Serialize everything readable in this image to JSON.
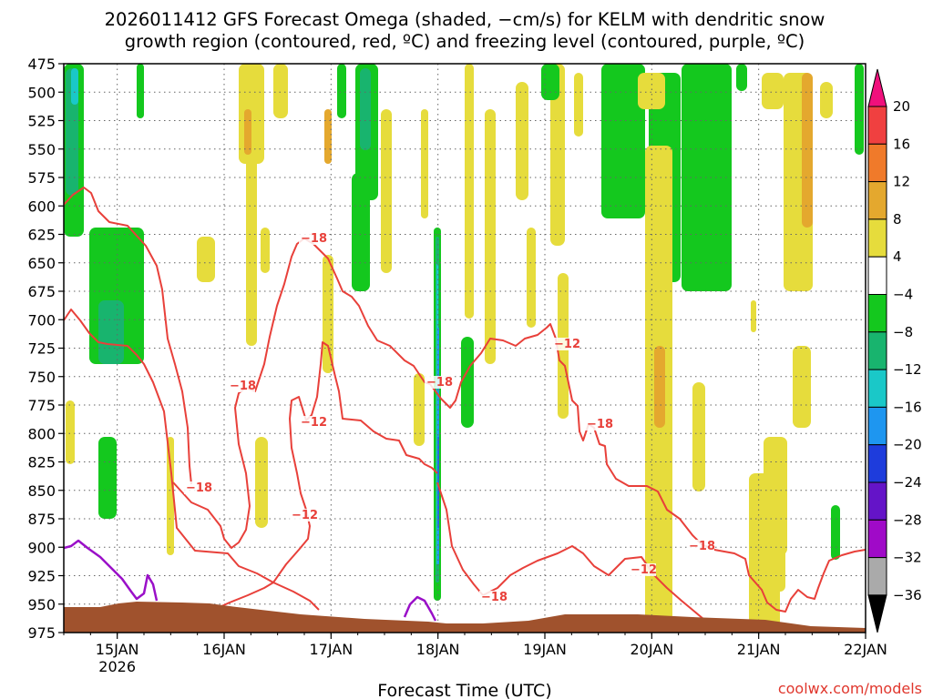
{
  "chart_data": {
    "type": "heatmap",
    "title_lines": [
      "2026011412 GFS Forecast Omega (shaded, −cm/s) for KELM with dendritic snow",
      "growth region (contoured, red, ºC) and freezing level (contoured, purple, ºC)"
    ],
    "xlabel": "Forecast Time (UTC)",
    "credit": "coolwx.com/models",
    "x_range": [
      "2026-01-14T12:00Z",
      "2026-01-22T00:00Z"
    ],
    "x_ticks": [
      "15JAN",
      "16JAN",
      "17JAN",
      "18JAN",
      "19JAN",
      "20JAN",
      "21JAN",
      "22JAN"
    ],
    "x_year_label": "2026",
    "y_ticks": [
      "475",
      "500",
      "525",
      "550",
      "575",
      "600",
      "625",
      "650",
      "675",
      "700",
      "725",
      "750",
      "775",
      "800",
      "825",
      "850",
      "875",
      "900",
      "925",
      "950",
      "975"
    ],
    "ylim_hpa": [
      975,
      475
    ],
    "grid": true,
    "colorbar": {
      "ticks": [
        "20",
        "16",
        "12",
        "8",
        "4",
        "−4",
        "−8",
        "−12",
        "−16",
        "−20",
        "−24",
        "−28",
        "−32",
        "−36"
      ],
      "colors": [
        "#f0107c",
        "#f04040",
        "#f07a2a",
        "#e4a82e",
        "#e6dc3c",
        "#ffffff",
        "#14c81e",
        "#18b46e",
        "#1ac8c8",
        "#1e96f0",
        "#1e3cdc",
        "#6414c8",
        "#a00ac8",
        "#aaaaaa",
        "#000000"
      ]
    },
    "dgz_labels": [
      "−18",
      "−18",
      "−12",
      "−18",
      "−12",
      "−18",
      "−12",
      "−18",
      "−18",
      "−12",
      "−18"
    ],
    "colors": {
      "dgz": "#e8403a",
      "freezing": "#9a10c8",
      "terrain": "#a0522d",
      "grid": "#666666"
    }
  }
}
